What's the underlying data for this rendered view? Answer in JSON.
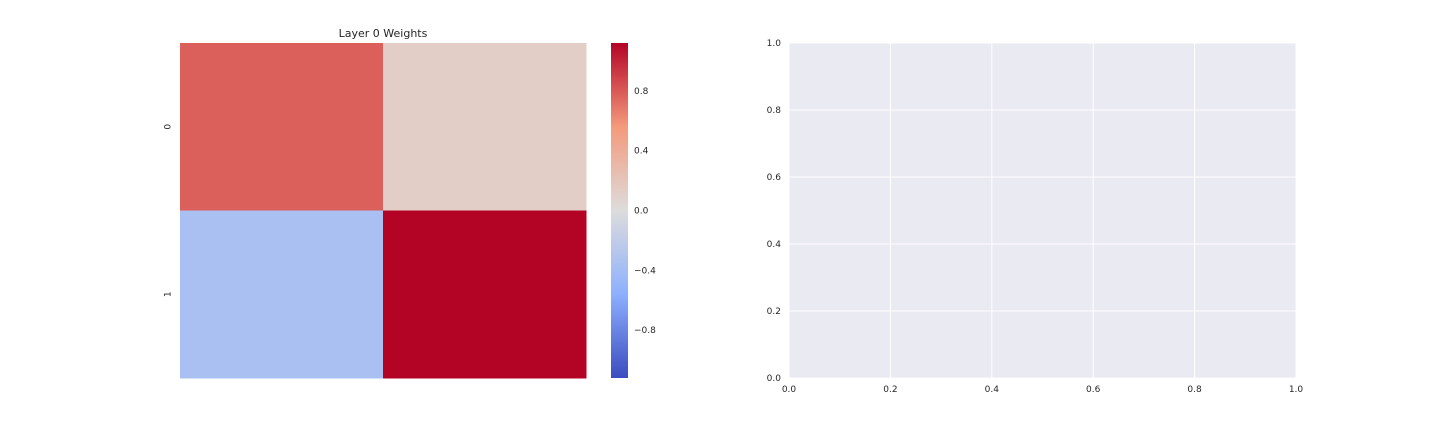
{
  "chart_data": [
    {
      "type": "heatmap",
      "title": "Layer 0 Weights",
      "rows": [
        "0",
        "1"
      ],
      "columns": [
        "",
        ""
      ],
      "values": [
        [
          0.78,
          0.12
        ],
        [
          -0.36,
          1.12
        ]
      ],
      "colormap": "coolwarm",
      "vmin": -1.12,
      "vmax": 1.12,
      "colorbar_ticks": [
        0.8,
        0.4,
        0.0,
        -0.4,
        -0.8
      ],
      "colorbar_tick_labels": [
        "0.8",
        "0.4",
        "0.0",
        "−0.4",
        "−0.8"
      ],
      "colorbar_colors": [
        "#b40426",
        "#f7a889",
        "#dddcdc",
        "#9dbdff",
        "#3b4cc0"
      ]
    },
    {
      "type": "scatter",
      "title": "",
      "xlim": [
        0.0,
        1.0
      ],
      "ylim": [
        0.0,
        1.0
      ],
      "x_ticks": [
        "0.0",
        "0.2",
        "0.4",
        "0.6",
        "0.8",
        "1.0"
      ],
      "y_ticks": [
        "0.0",
        "0.2",
        "0.4",
        "0.6",
        "0.8",
        "1.0"
      ],
      "grid": true,
      "background": "#eaeaf2",
      "series": []
    }
  ]
}
